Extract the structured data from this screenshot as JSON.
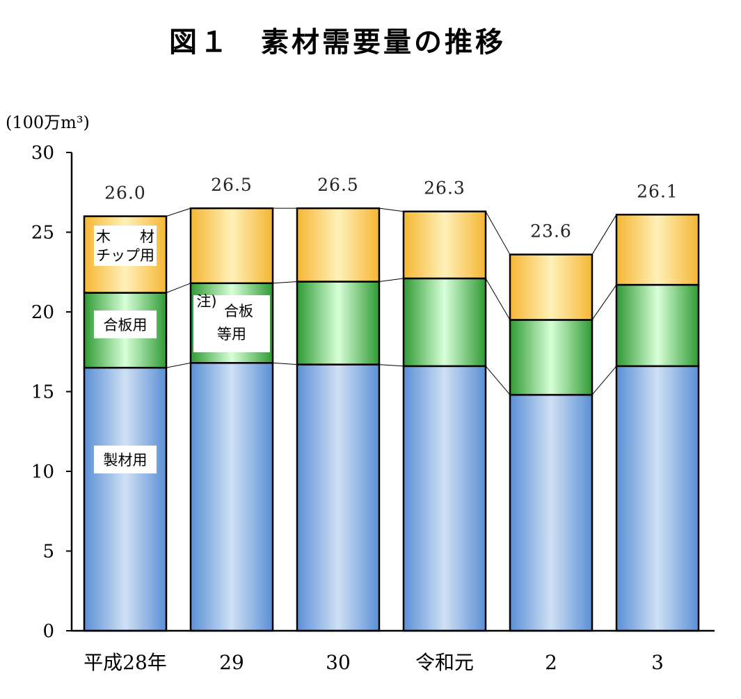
{
  "chart_data": {
    "type": "bar",
    "stacked": true,
    "title": "図１　素材需要量の推移",
    "ylabel": "(100万m³)",
    "ylim": [
      0,
      30
    ],
    "yticks": [
      0,
      5,
      10,
      15,
      20,
      25,
      30
    ],
    "categories": [
      "平成28年",
      "29",
      "30",
      "令和元",
      "2",
      "3"
    ],
    "totals": [
      "26.0",
      "26.5",
      "26.5",
      "26.3",
      "23.6",
      "26.1"
    ],
    "series": [
      {
        "name": "製材用",
        "values": [
          16.5,
          16.8,
          16.7,
          16.6,
          14.8,
          16.6
        ],
        "color_light": "#cfe0f4",
        "color_dark": "#5b8fd6"
      },
      {
        "name": "合板等用",
        "values": [
          4.7,
          5.0,
          5.2,
          5.5,
          4.7,
          5.1
        ],
        "color_light": "#d8ffd8",
        "color_dark": "#2f9a34"
      },
      {
        "name": "木材チップ用",
        "values": [
          4.8,
          4.7,
          4.6,
          4.2,
          4.1,
          4.4
        ],
        "color_light": "#fff0b8",
        "color_dark": "#f5b633"
      }
    ],
    "segment_labels": {
      "sawn": "製材用",
      "plywood_first": "合板用",
      "plywood_note": "注)",
      "plywood_line1": "合板",
      "plywood_line2": "等用",
      "chip_line1": "木　　材",
      "chip_line2": "チップ用"
    },
    "legend": "inline labels on bars",
    "grid": false
  }
}
